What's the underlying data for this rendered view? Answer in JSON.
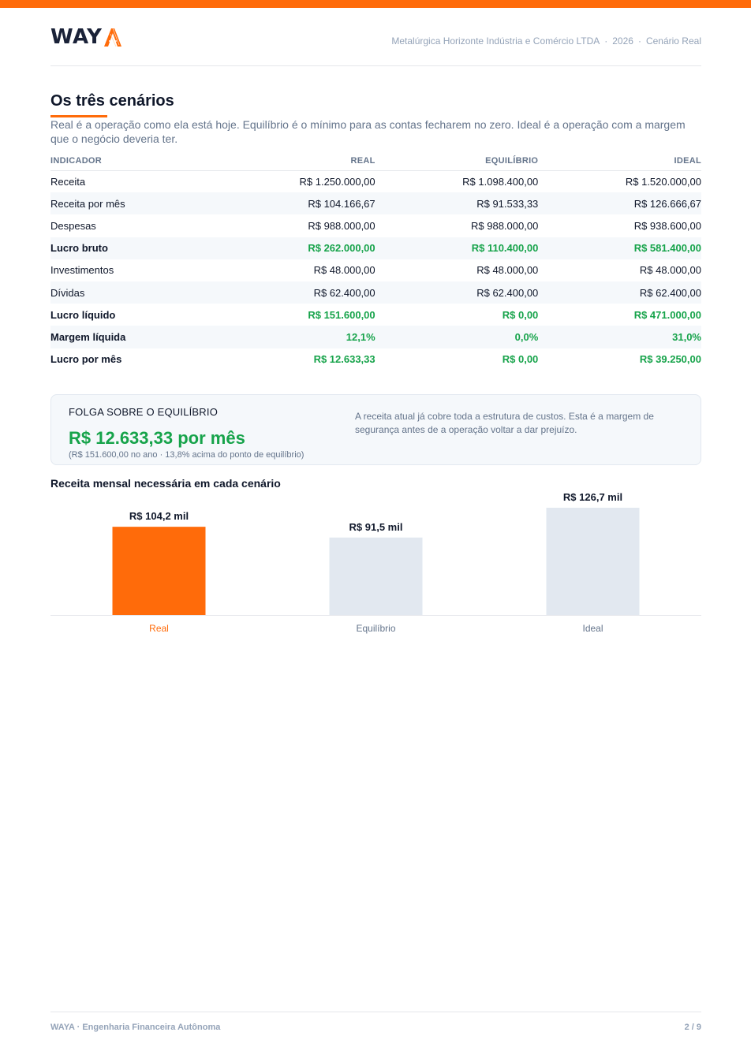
{
  "brand": {
    "logo_text": "WAY",
    "logo_icon": "waya-a-logo",
    "accent_color": "#ff6b0a"
  },
  "header": {
    "company": "Metalúrgica Horizonte Indústria e Comércio LTDA",
    "separator": "·",
    "year": "2026",
    "scenario": "Cenário Real"
  },
  "section": {
    "title": "Os três cenários",
    "intro": "Real é a operação como ela está hoje. Equilíbrio é o mínimo para as contas fecharem no zero. Ideal é a operação com a margem que o negócio deveria ter."
  },
  "table": {
    "headers": [
      "INDICADOR",
      "REAL",
      "EQUILÍBRIO",
      "IDEAL"
    ],
    "rows": [
      {
        "label": "Receita",
        "real": "R$ 1.250.000,00",
        "equilibrio": "R$ 1.098.400,00",
        "ideal": "R$ 1.520.000,00"
      },
      {
        "label": "Receita por mês",
        "real": "R$ 104.166,67",
        "equilibrio": "R$ 91.533,33",
        "ideal": "R$ 126.666,67"
      },
      {
        "label": "Despesas",
        "real": "R$ 988.000,00",
        "equilibrio": "R$ 988.000,00",
        "ideal": "R$ 938.600,00"
      },
      {
        "label": "Lucro bruto",
        "real": "R$ 262.000,00",
        "equilibrio": "R$ 110.400,00",
        "ideal": "R$ 581.400,00"
      },
      {
        "label": "Investimentos",
        "real": "R$ 48.000,00",
        "equilibrio": "R$ 48.000,00",
        "ideal": "R$ 48.000,00"
      },
      {
        "label": "Dívidas",
        "real": "R$ 62.400,00",
        "equilibrio": "R$ 62.400,00",
        "ideal": "R$ 62.400,00"
      },
      {
        "label": "Lucro líquido",
        "real": "R$ 151.600,00",
        "equilibrio": "R$ 0,00",
        "ideal": "R$ 471.000,00"
      },
      {
        "label": "Margem líquida",
        "real": "12,1%",
        "equilibrio": "0,0%",
        "ideal": "31,0%"
      },
      {
        "label": "Lucro por mês",
        "real": "R$ 12.633,33",
        "equilibrio": "R$ 0,00",
        "ideal": "R$ 39.250,00"
      }
    ]
  },
  "folga": {
    "label": "FOLGA SOBRE O EQUILÍBRIO",
    "value": "R$ 12.633,33 por mês",
    "sub": "(R$ 151.600,00 no ano · 13,8% acima do ponto de equilíbrio)",
    "text": "A receita atual já cobre toda a estrutura de custos. Esta é a margem de segurança antes de a operação voltar a dar prejuízo."
  },
  "chart_title": "Receita mensal necessária em cada cenário",
  "chart_data": {
    "type": "bar",
    "title": "Receita mensal necessária em cada cenário",
    "categories": [
      "Real",
      "Equilíbrio",
      "Ideal"
    ],
    "values": [
      104.2,
      91.5,
      126.7
    ],
    "labels": [
      "R$ 104,2 mil",
      "R$ 91,5 mil",
      "R$ 126,7 mil"
    ],
    "unit": "R$ mil",
    "colors": [
      "#ff6b0a",
      "#e2e8f0",
      "#e2e8f0"
    ],
    "category_colors": [
      "#ff6b0a",
      "#64748b",
      "#64748b"
    ],
    "grid": false,
    "legend": "none"
  },
  "footer": {
    "left": "WAYA · Engenharia Financeira Autônoma",
    "right": "2 / 9"
  }
}
